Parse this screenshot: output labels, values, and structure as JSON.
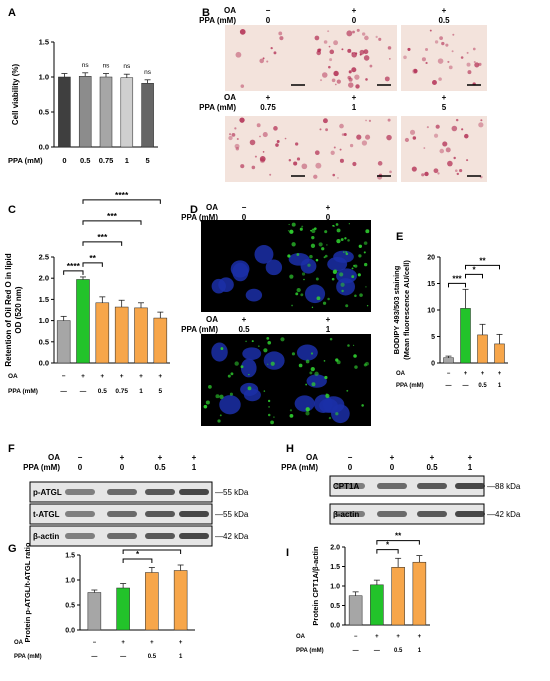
{
  "panels": {
    "A": "A",
    "B": "B",
    "C": "C",
    "D": "D",
    "E": "E",
    "F": "F",
    "G": "G",
    "H": "H",
    "I": "I"
  },
  "colors": {
    "gray_dark": "#3f3f3f",
    "gray_mid": "#8c8c8c",
    "gray_light": "#cfcfcf",
    "control": "#a6a6a6",
    "oa": "#22c32a",
    "ppa": "#f7a64a",
    "micro_blue": "#1b2fa8",
    "micro_green": "#2fd02f",
    "stain_bg": "#f3e3dc",
    "stain_red": "#b0284f"
  },
  "panel_b": {
    "row_labels": [
      "OA",
      "PPA (mM)"
    ],
    "oa": [
      "−",
      "+",
      "+",
      "+",
      "+",
      "+"
    ],
    "ppa": [
      "0",
      "0",
      "0.5",
      "0.75",
      "1",
      "5"
    ]
  },
  "panel_d": {
    "row_labels": [
      "OA",
      "PPA (mM)"
    ],
    "oa": [
      "−",
      "+",
      "+",
      "+"
    ],
    "ppa": [
      "0",
      "0",
      "0.5",
      "1"
    ]
  },
  "panel_f": {
    "row_labels": [
      "OA",
      "PPA (mM)"
    ],
    "oa": [
      "−",
      "+",
      "+",
      "+"
    ],
    "ppa": [
      "0",
      "0",
      "0.5",
      "1"
    ],
    "bands": [
      "p-ATGL",
      "t-ATGL",
      "β-actin"
    ],
    "sizes": [
      "55 kDa",
      "55 kDa",
      "42 kDa"
    ]
  },
  "panel_h": {
    "row_labels": [
      "OA",
      "PPA (mM)"
    ],
    "oa": [
      "−",
      "+",
      "+",
      "+"
    ],
    "ppa": [
      "0",
      "0",
      "0.5",
      "1"
    ],
    "bands": [
      "CPT1A",
      "β-actin"
    ],
    "sizes": [
      "88 kDa",
      "42 kDa"
    ]
  },
  "chart_data": [
    {
      "panel": "A",
      "type": "bar",
      "ylabel": "Cell viability (%)",
      "xlabel": "PPA (mM)",
      "categories": [
        "0",
        "0.5",
        "0.75",
        "1",
        "5"
      ],
      "values": [
        1.0,
        1.01,
        1.0,
        0.99,
        0.91
      ],
      "errors": [
        0.05,
        0.05,
        0.05,
        0.05,
        0.05
      ],
      "colors": [
        "#3f3f3f",
        "#8c8c8c",
        "#a6a6a6",
        "#cfcfcf",
        "#666666"
      ],
      "ylim": [
        0,
        1.5
      ],
      "yticks": [
        "0.0",
        "0.5",
        "1.0",
        "1.5"
      ],
      "sig": [
        "",
        "ns",
        "ns",
        "ns",
        "ns"
      ]
    },
    {
      "panel": "C",
      "type": "bar",
      "ylabel": "Retention of Oil Red O in lipid\nOD (520 nm)",
      "rows": [
        {
          "label": "OA",
          "values": [
            "−",
            "+",
            "+",
            "+",
            "+",
            "+"
          ]
        },
        {
          "label": "PPA (mM)",
          "values": [
            "—",
            "—",
            "0.5",
            "0.75",
            "1",
            "5"
          ]
        }
      ],
      "values": [
        1.0,
        1.97,
        1.42,
        1.32,
        1.3,
        1.06
      ],
      "errors": [
        0.1,
        0.06,
        0.14,
        0.16,
        0.12,
        0.14
      ],
      "colors": [
        "#a6a6a6",
        "#22c32a",
        "#f7a64a",
        "#f7a64a",
        "#f7a64a",
        "#f7a64a"
      ],
      "ylim": [
        0,
        2.5
      ],
      "yticks": [
        "0.0",
        "0.5",
        "1.0",
        "1.5",
        "2.0",
        "2.5"
      ],
      "brackets": [
        {
          "from": 0,
          "to": 1,
          "label": "****"
        },
        {
          "from": 1,
          "to": 2,
          "label": "**"
        },
        {
          "from": 1,
          "to": 3,
          "label": "***"
        },
        {
          "from": 1,
          "to": 4,
          "label": "***"
        },
        {
          "from": 1,
          "to": 5,
          "label": "****"
        }
      ]
    },
    {
      "panel": "E",
      "type": "bar",
      "ylabel": "BODIPY 493/503 staining\n(Mean fluorescence AU/cell)",
      "rows": [
        {
          "label": "OA",
          "values": [
            "−",
            "+",
            "+",
            "+"
          ]
        },
        {
          "label": "PPA (mM)",
          "values": [
            "—",
            "—",
            "0.5",
            "1"
          ]
        }
      ],
      "values": [
        1.0,
        10.3,
        5.3,
        3.6
      ],
      "errors": [
        0.3,
        3.6,
        2.0,
        1.8
      ],
      "colors": [
        "#a6a6a6",
        "#22c32a",
        "#f7a64a",
        "#f7a64a"
      ],
      "ylim": [
        0,
        20
      ],
      "yticks": [
        "0",
        "5",
        "10",
        "15",
        "20"
      ],
      "brackets": [
        {
          "from": 0,
          "to": 1,
          "label": "***"
        },
        {
          "from": 1,
          "to": 2,
          "label": "*"
        },
        {
          "from": 1,
          "to": 3,
          "label": "**"
        }
      ]
    },
    {
      "panel": "G",
      "type": "bar",
      "ylabel": "Protein p-ATGL/t-ATGL ratio",
      "rows": [
        {
          "label": "OA",
          "values": [
            "−",
            "+",
            "+",
            "+"
          ]
        },
        {
          "label": "PPA (mM)",
          "values": [
            "—",
            "—",
            "0.5",
            "1"
          ]
        }
      ],
      "values": [
        0.75,
        0.84,
        1.15,
        1.19
      ],
      "errors": [
        0.05,
        0.09,
        0.1,
        0.11
      ],
      "colors": [
        "#a6a6a6",
        "#22c32a",
        "#f7a64a",
        "#f7a64a"
      ],
      "ylim": [
        0,
        1.5
      ],
      "yticks": [
        "0.0",
        "0.5",
        "1.0",
        "1.5"
      ],
      "brackets": [
        {
          "from": 1,
          "to": 2,
          "label": "*"
        },
        {
          "from": 1,
          "to": 3,
          "label": "*"
        }
      ]
    },
    {
      "panel": "I",
      "type": "bar",
      "ylabel": "Protein CPT1A/β-actin",
      "rows": [
        {
          "label": "OA",
          "values": [
            "−",
            "+",
            "+",
            "+"
          ]
        },
        {
          "label": "PPA (mM)",
          "values": [
            "—",
            "—",
            "0.5",
            "1"
          ]
        }
      ],
      "values": [
        0.75,
        1.03,
        1.48,
        1.61
      ],
      "errors": [
        0.1,
        0.12,
        0.23,
        0.17
      ],
      "colors": [
        "#a6a6a6",
        "#22c32a",
        "#f7a64a",
        "#f7a64a"
      ],
      "ylim": [
        0,
        2.0
      ],
      "yticks": [
        "0.0",
        "0.5",
        "1.0",
        "1.5",
        "2.0"
      ],
      "brackets": [
        {
          "from": 1,
          "to": 2,
          "label": "*"
        },
        {
          "from": 1,
          "to": 3,
          "label": "**"
        }
      ]
    }
  ]
}
